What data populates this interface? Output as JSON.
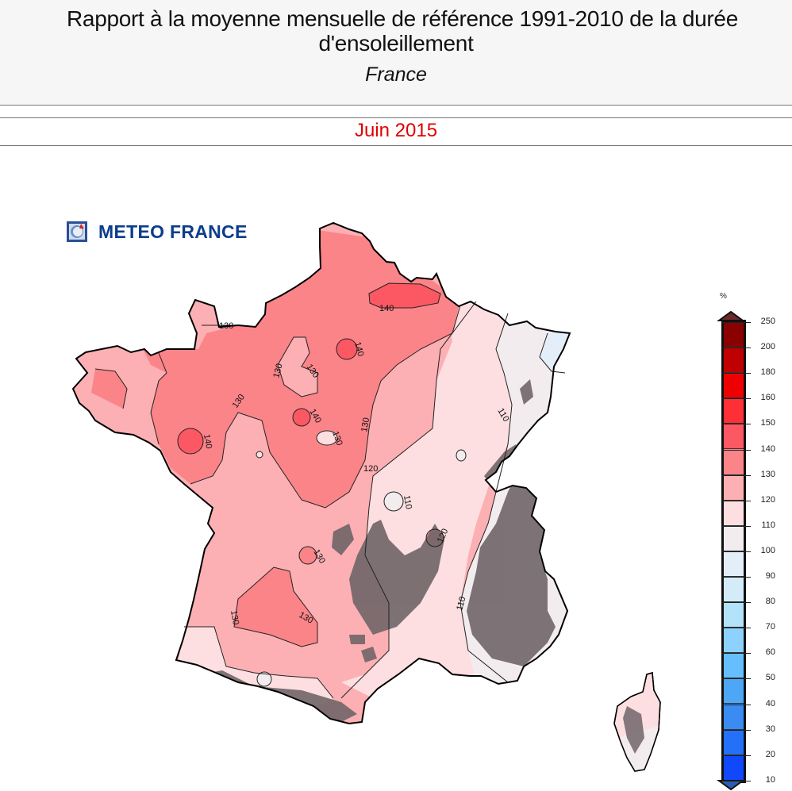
{
  "header": {
    "title_line1": "Rapport à la moyenne mensuelle de référence 1991-2010 de la durée",
    "title_line2": "d'ensoleillement",
    "region": "France"
  },
  "period": {
    "label": "Juin 2015",
    "color": "#e00000"
  },
  "logo": {
    "text": "METEO FRANCE",
    "icon": "meteo-france-logo-icon"
  },
  "legend": {
    "unit": "%",
    "levels": [
      "250",
      "200",
      "180",
      "160",
      "150",
      "140",
      "130",
      "120",
      "110",
      "100",
      "90",
      "80",
      "70",
      "60",
      "50",
      "40",
      "30",
      "20",
      "10"
    ],
    "colors": [
      "#8b0000",
      "#c00000",
      "#ee0000",
      "#ff2f37",
      "#fb5863",
      "#fb8489",
      "#fcb0b3",
      "#fddfe1",
      "#f3ecef",
      "#e4eef9",
      "#d4ecfa",
      "#b3e2fb",
      "#8cd2fc",
      "#65bffd",
      "#4ea7f6",
      "#3a8bf2",
      "#2570f8",
      "#1048fb"
    ],
    "over_color": "#6b2a2e",
    "under_color": "#2b5cb2"
  },
  "map": {
    "contour_labels": [
      "130",
      "140",
      "130",
      "130",
      "140",
      "140",
      "130",
      "140",
      "130",
      "130",
      "120",
      "110",
      "110",
      "120",
      "110",
      "130",
      "130",
      "130"
    ],
    "relief_color": "#706568"
  }
}
